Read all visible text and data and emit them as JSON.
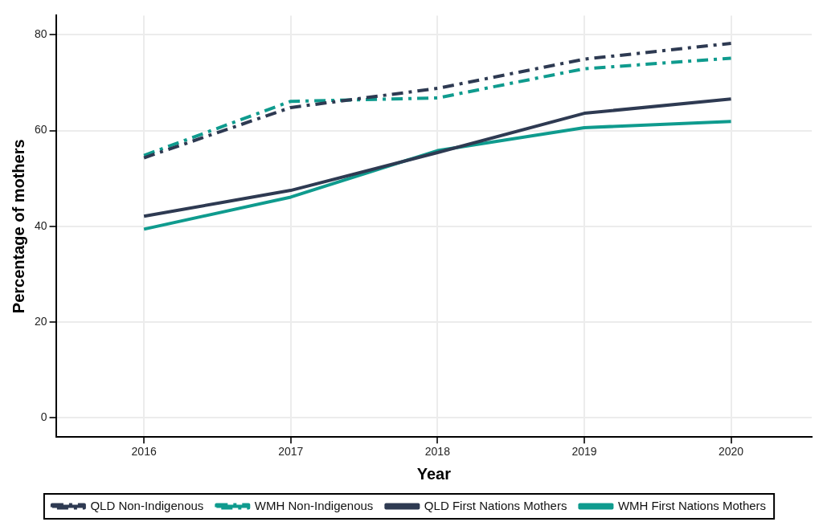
{
  "chart_data": {
    "type": "line",
    "xlabel": "Year",
    "ylabel": "Percentage of mothers",
    "x": [
      2016,
      2017,
      2018,
      2019,
      2020
    ],
    "xlim": [
      2015.4,
      2020.55
    ],
    "xticks": [
      2016,
      2017,
      2018,
      2019,
      2020
    ],
    "ylim": [
      -4,
      84
    ],
    "yticks": [
      0,
      20,
      40,
      60,
      80
    ],
    "grid": true,
    "legend": "bottom",
    "marker": "none",
    "series": [
      {
        "name": "QLD Non-Indigenous",
        "color": "#2e3a52",
        "line_style": "dashed",
        "values": [
          54.3,
          64.8,
          68.8,
          74.9,
          78.2
        ]
      },
      {
        "name": "WMH Non-Indigenous",
        "color": "#0f9b8e",
        "line_style": "dashed",
        "values": [
          54.8,
          66.1,
          66.8,
          72.9,
          75.1
        ]
      },
      {
        "name": "QLD First Nations Mothers",
        "color": "#2e3a52",
        "line_style": "solid",
        "values": [
          42.1,
          47.5,
          55.4,
          63.6,
          66.6
        ]
      },
      {
        "name": "WMH First Nations Mothers",
        "color": "#0f9b8e",
        "line_style": "solid",
        "values": [
          39.4,
          46.1,
          55.8,
          60.6,
          61.9
        ]
      }
    ]
  }
}
